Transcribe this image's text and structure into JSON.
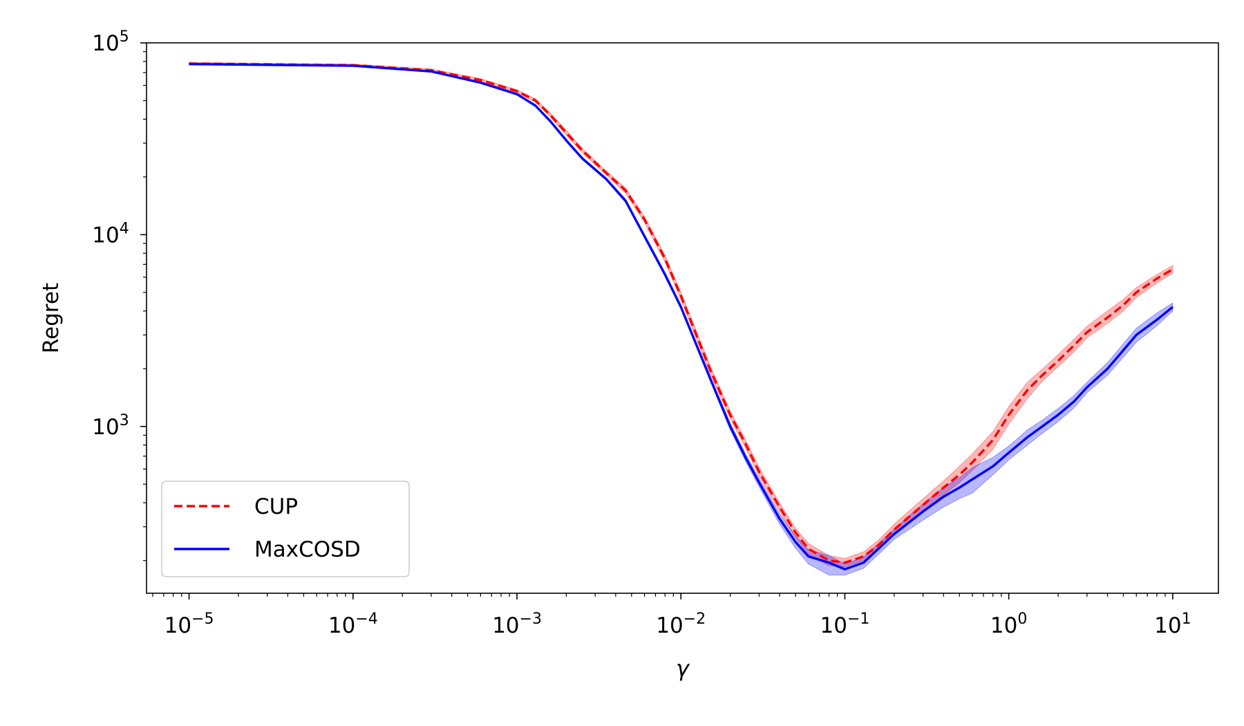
{
  "chart_data": {
    "type": "line",
    "title": "",
    "xlabel": "γ",
    "ylabel": "Regret",
    "xscale": "log",
    "yscale": "log",
    "xlim": [
      5.5e-06,
      19
    ],
    "ylim": [
      135,
      100000
    ],
    "grid": false,
    "legend": {
      "position": "lower-left"
    },
    "x_ticks": [
      {
        "value": 1e-05,
        "base": "10",
        "exp": "−5"
      },
      {
        "value": 0.0001,
        "base": "10",
        "exp": "−4"
      },
      {
        "value": 0.001,
        "base": "10",
        "exp": "−3"
      },
      {
        "value": 0.01,
        "base": "10",
        "exp": "−2"
      },
      {
        "value": 0.1,
        "base": "10",
        "exp": "−1"
      },
      {
        "value": 1,
        "base": "10",
        "exp": "0"
      },
      {
        "value": 10,
        "base": "10",
        "exp": "1"
      }
    ],
    "y_ticks": [
      {
        "value": 1000,
        "base": "10",
        "exp": "3"
      },
      {
        "value": 10000,
        "base": "10",
        "exp": "4"
      },
      {
        "value": 100000,
        "base": "10",
        "exp": "5"
      }
    ],
    "series": [
      {
        "name": "CUP",
        "color": "#ff0000",
        "style": "dashed",
        "x": [
          1e-05,
          0.0001,
          0.0003,
          0.0006,
          0.001,
          0.0013,
          0.0016,
          0.002,
          0.0025,
          0.0035,
          0.0046,
          0.006,
          0.008,
          0.01,
          0.015,
          0.02,
          0.025,
          0.03,
          0.04,
          0.05,
          0.06,
          0.08,
          0.1,
          0.13,
          0.16,
          0.2,
          0.3,
          0.4,
          0.5,
          0.6,
          0.8,
          1,
          1.3,
          1.6,
          2,
          2.5,
          3,
          4,
          5,
          6,
          8,
          10
        ],
        "y": [
          78000,
          76500,
          72000,
          64000,
          56000,
          50000,
          42000,
          34000,
          27500,
          21000,
          17000,
          12000,
          7500,
          4800,
          2000,
          1150,
          800,
          580,
          380,
          280,
          230,
          200,
          195,
          210,
          240,
          290,
          390,
          480,
          560,
          650,
          850,
          1150,
          1550,
          1850,
          2200,
          2650,
          3100,
          3700,
          4300,
          5000,
          5900,
          6600
        ],
        "lower": [
          77000,
          75500,
          71000,
          63000,
          55000,
          49000,
          41000,
          33000,
          26800,
          20500,
          16500,
          11600,
          7200,
          4600,
          1900,
          1100,
          760,
          550,
          360,
          265,
          215,
          188,
          185,
          200,
          228,
          272,
          360,
          440,
          510,
          590,
          760,
          1030,
          1400,
          1720,
          2050,
          2450,
          2900,
          3450,
          4000,
          4700,
          5600,
          6300
        ],
        "upper": [
          79000,
          77500,
          73000,
          65000,
          57000,
          51000,
          43000,
          35000,
          28200,
          21500,
          17500,
          12400,
          7800,
          5000,
          2100,
          1200,
          840,
          610,
          400,
          295,
          245,
          212,
          205,
          222,
          255,
          310,
          420,
          520,
          620,
          720,
          940,
          1270,
          1700,
          1990,
          2370,
          2850,
          3330,
          4000,
          4600,
          5300,
          6200,
          6900
        ]
      },
      {
        "name": "MaxCOSD",
        "color": "#0000ff",
        "style": "solid",
        "x": [
          1e-05,
          0.0001,
          0.0003,
          0.0006,
          0.001,
          0.0013,
          0.0016,
          0.002,
          0.0025,
          0.0035,
          0.0046,
          0.006,
          0.008,
          0.01,
          0.015,
          0.02,
          0.025,
          0.03,
          0.04,
          0.05,
          0.06,
          0.08,
          0.1,
          0.13,
          0.16,
          0.2,
          0.3,
          0.4,
          0.5,
          0.6,
          0.8,
          1,
          1.3,
          1.6,
          2,
          2.5,
          3,
          4,
          5,
          6,
          8,
          10
        ],
        "y": [
          77500,
          76000,
          71000,
          62000,
          54000,
          47000,
          39000,
          31000,
          25000,
          19500,
          15000,
          9800,
          6200,
          4200,
          1800,
          1000,
          680,
          510,
          330,
          250,
          210,
          195,
          180,
          195,
          230,
          275,
          360,
          430,
          480,
          530,
          620,
          730,
          880,
          1000,
          1150,
          1350,
          1600,
          2000,
          2500,
          3000,
          3600,
          4200
        ],
        "lower": [
          77000,
          75500,
          70500,
          61500,
          53500,
          46500,
          38500,
          30500,
          24600,
          19200,
          14700,
          9600,
          6050,
          4100,
          1750,
          960,
          650,
          485,
          310,
          232,
          192,
          168,
          168,
          182,
          215,
          258,
          325,
          380,
          420,
          450,
          560,
          670,
          800,
          920,
          1060,
          1250,
          1500,
          1850,
          2300,
          2750,
          3350,
          4000
        ],
        "upper": [
          78000,
          76500,
          71500,
          62500,
          54500,
          47500,
          39500,
          31500,
          25400,
          19800,
          15300,
          10000,
          6350,
          4300,
          1850,
          1040,
          710,
          535,
          350,
          268,
          228,
          212,
          192,
          208,
          245,
          292,
          395,
          480,
          540,
          610,
          690,
          790,
          960,
          1080,
          1240,
          1450,
          1700,
          2150,
          2700,
          3250,
          3900,
          4400
        ]
      }
    ]
  }
}
